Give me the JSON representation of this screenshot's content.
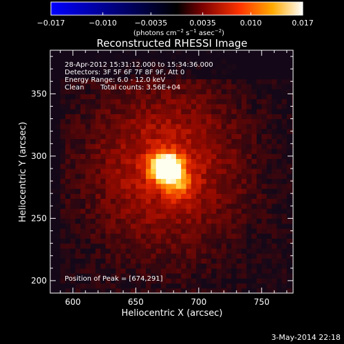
{
  "colorbar": {
    "tick_labels": [
      "−0.017",
      "−0.010",
      "−0.0035",
      "0.0035",
      "0.010",
      "0.017"
    ],
    "tick_values": [
      -0.017,
      -0.01,
      -0.0035,
      0.0035,
      0.01,
      0.017
    ],
    "range": [
      -0.017,
      0.017
    ],
    "unit_main": "(photons cm",
    "unit_sup1": "−2",
    "unit_mid": " s",
    "unit_sup2": "−1",
    "unit_end": " asec",
    "unit_sup3": "−2",
    "unit_close": ")",
    "colors": [
      "#0000ff",
      "#000000",
      "#7a0000",
      "#ff3300",
      "#ffaa00",
      "#ffffff"
    ]
  },
  "chart_data": {
    "type": "heatmap",
    "title": "Reconstructed RHESSI Image",
    "xlabel": "Heliocentric X (arcsec)",
    "ylabel": "Heliocentric Y (arcsec)",
    "xlim": [
      582,
      775
    ],
    "ylim": [
      190,
      385
    ],
    "x_ticks": [
      600,
      650,
      700,
      750
    ],
    "y_ticks": [
      200,
      250,
      300,
      350
    ],
    "peak": [
      674,
      291
    ],
    "annotations": {
      "time_range": "28-Apr-2012 15:31:12.000 to 15:34:36.000",
      "detectors": "Detectors: 3F 5F 6F 7F 8F 9F, Att 0",
      "energy": "Energy Range: 6.0 - 12.0 keV",
      "method": "Clean",
      "counts": "Total counts: 3.56E+04",
      "peak_label": "Position of Peak = [674,291]"
    }
  },
  "footer": {
    "date": "3-May-2014 22:18"
  }
}
